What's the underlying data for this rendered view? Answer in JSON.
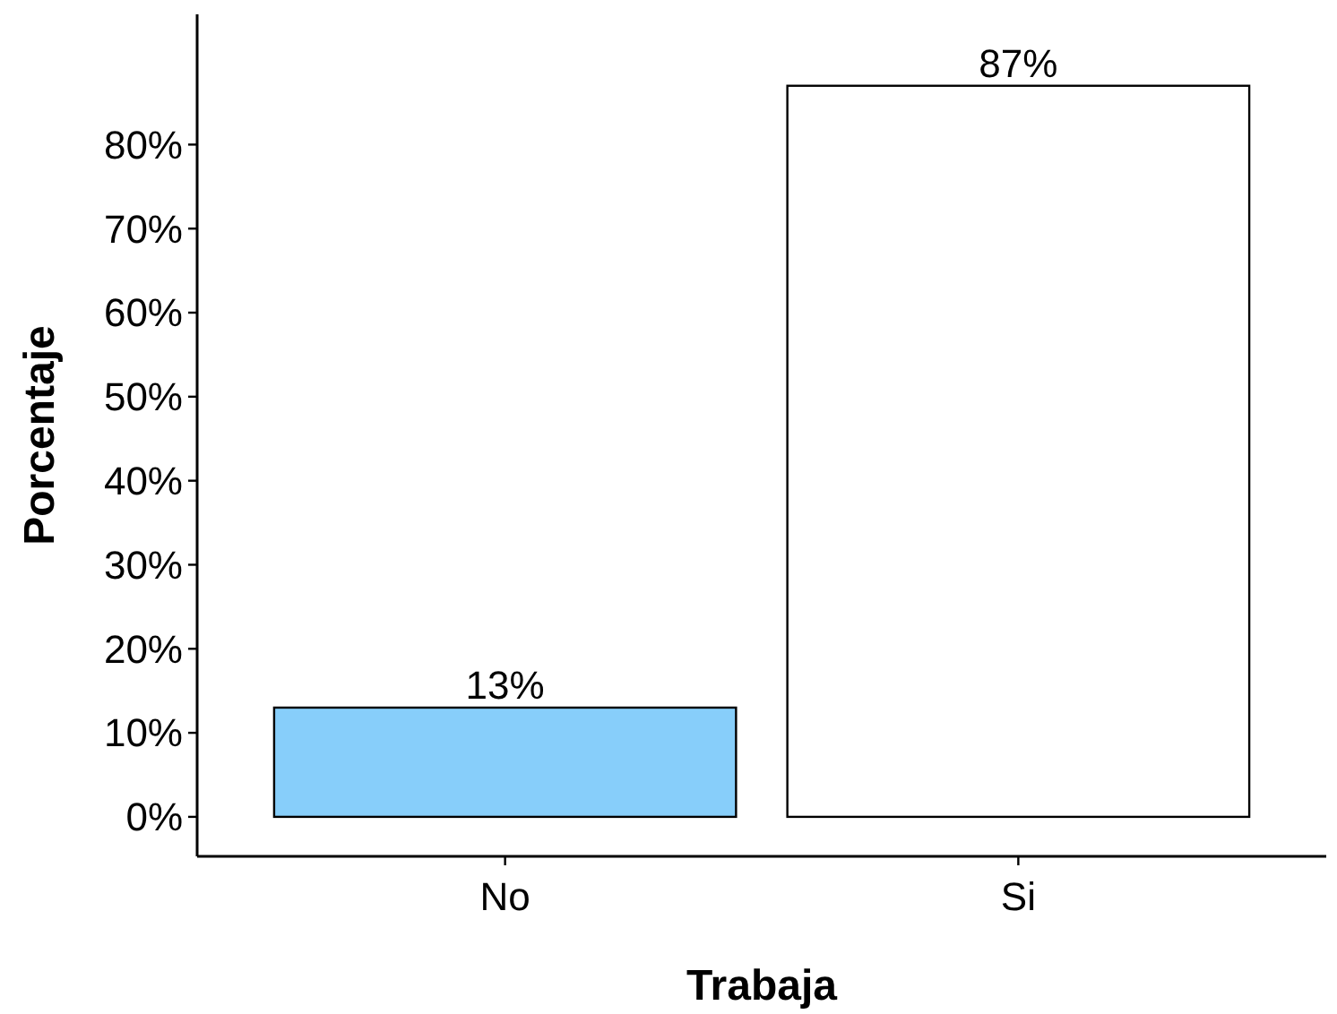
{
  "chart_data": {
    "type": "bar",
    "xlabel": "Trabaja",
    "ylabel": "Porcentaje",
    "categories": [
      "No",
      "Si"
    ],
    "values": [
      13,
      87
    ],
    "colors": [
      "#87cefa",
      "#ffffff"
    ],
    "value_labels": [
      "13%",
      "87%"
    ],
    "ylim": [
      -4.7,
      95.5
    ],
    "yticks": [
      {
        "value": 0,
        "label": "0%"
      },
      {
        "value": 10,
        "label": "10%"
      },
      {
        "value": 20,
        "label": "20%"
      },
      {
        "value": 30,
        "label": "30%"
      },
      {
        "value": 40,
        "label": "40%"
      },
      {
        "value": 50,
        "label": "50%"
      },
      {
        "value": 60,
        "label": "60%"
      },
      {
        "value": 70,
        "label": "70%"
      },
      {
        "value": 80,
        "label": "80%"
      }
    ],
    "grid": false
  }
}
